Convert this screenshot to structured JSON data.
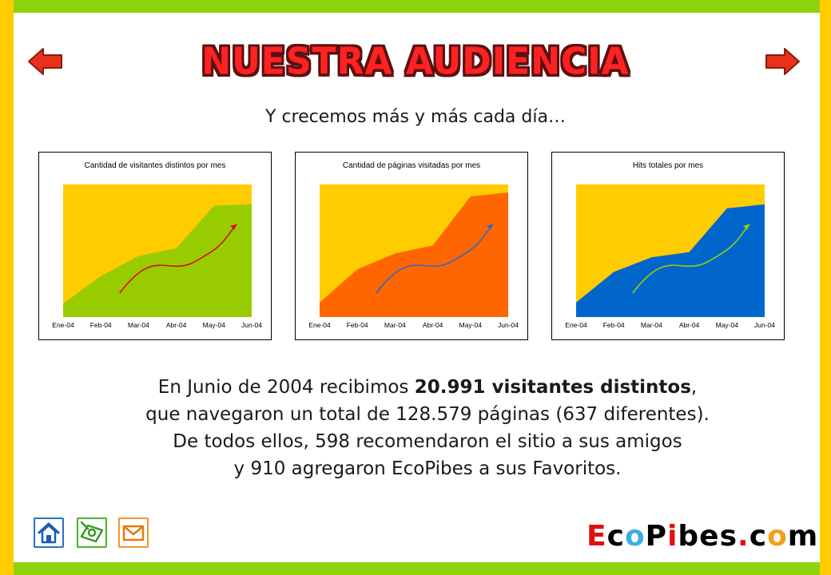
{
  "page": {
    "title": "NUESTRA AUDIENCIA",
    "subtitle": "Y crecemos más y más cada día…"
  },
  "nav": {
    "prev_icon": "left-arrow-icon",
    "next_icon": "right-arrow-icon",
    "arrow_color": "#e8311a"
  },
  "charts": [
    {
      "title": "Cantidad de visitantes distintos por mes",
      "fill_color": "#99cc00",
      "trend_color": "#d41010"
    },
    {
      "title": "Cantidad de páginas visitadas por mes",
      "fill_color": "#ff6600",
      "trend_color": "#3366cc"
    },
    {
      "title": "Hits totales por mes",
      "fill_color": "#0066cc",
      "trend_color": "#99cc00"
    }
  ],
  "chart_data": [
    {
      "type": "area",
      "title": "Cantidad de visitantes distintos por mes",
      "categories": [
        "Ene-04",
        "Feb-04",
        "Mar-04",
        "Abr-04",
        "May-04",
        "Jun-04"
      ],
      "values": [
        0.1,
        0.31,
        0.46,
        0.52,
        0.84,
        0.85
      ],
      "background_color": "#ffcc00",
      "grid": false,
      "xlabel": "",
      "ylabel": ""
    },
    {
      "type": "area",
      "title": "Cantidad de páginas visitadas por mes",
      "categories": [
        "Ene-04",
        "Feb-04",
        "Mar-04",
        "Abr-04",
        "May-04",
        "Jun-04"
      ],
      "values": [
        0.11,
        0.36,
        0.48,
        0.54,
        0.91,
        0.94
      ],
      "background_color": "#ffcc00",
      "grid": false,
      "xlabel": "",
      "ylabel": ""
    },
    {
      "type": "area",
      "title": "Hits totales por mes",
      "categories": [
        "Ene-04",
        "Feb-04",
        "Mar-04",
        "Abr-04",
        "May-04",
        "Jun-04"
      ],
      "values": [
        0.11,
        0.34,
        0.45,
        0.49,
        0.82,
        0.85
      ],
      "background_color": "#ffcc00",
      "grid": false,
      "xlabel": "",
      "ylabel": ""
    }
  ],
  "stats": {
    "line1_pre": "En Junio de 2004 recibimos ",
    "line1_bold": "20.991 visitantes distintos",
    "line1_post": ",",
    "line2": "que navegaron un total de 128.579 páginas (637 diferentes).",
    "line3": "De todos ellos, 598 recomendaron el sitio a sus amigos",
    "line4": "y 910 agregaron EcoPibes a sus Favoritos."
  },
  "footer": {
    "icons": [
      {
        "name": "home-icon",
        "color": "#2a6fc9"
      },
      {
        "name": "game-icon",
        "color": "#4caf2b"
      },
      {
        "name": "mail-icon",
        "color": "#f0952a"
      }
    ],
    "brand": {
      "e": "E",
      "c": "c",
      "o1": "o",
      "p": "P",
      "i": "i",
      "bes": "bes",
      "dot": ".",
      "co": "c",
      "o2": "o",
      "m": "m"
    }
  },
  "colors": {
    "frame_green": "#8ed40c",
    "frame_yellow": "#ffcc00",
    "chart_background": "#ffcc00"
  }
}
